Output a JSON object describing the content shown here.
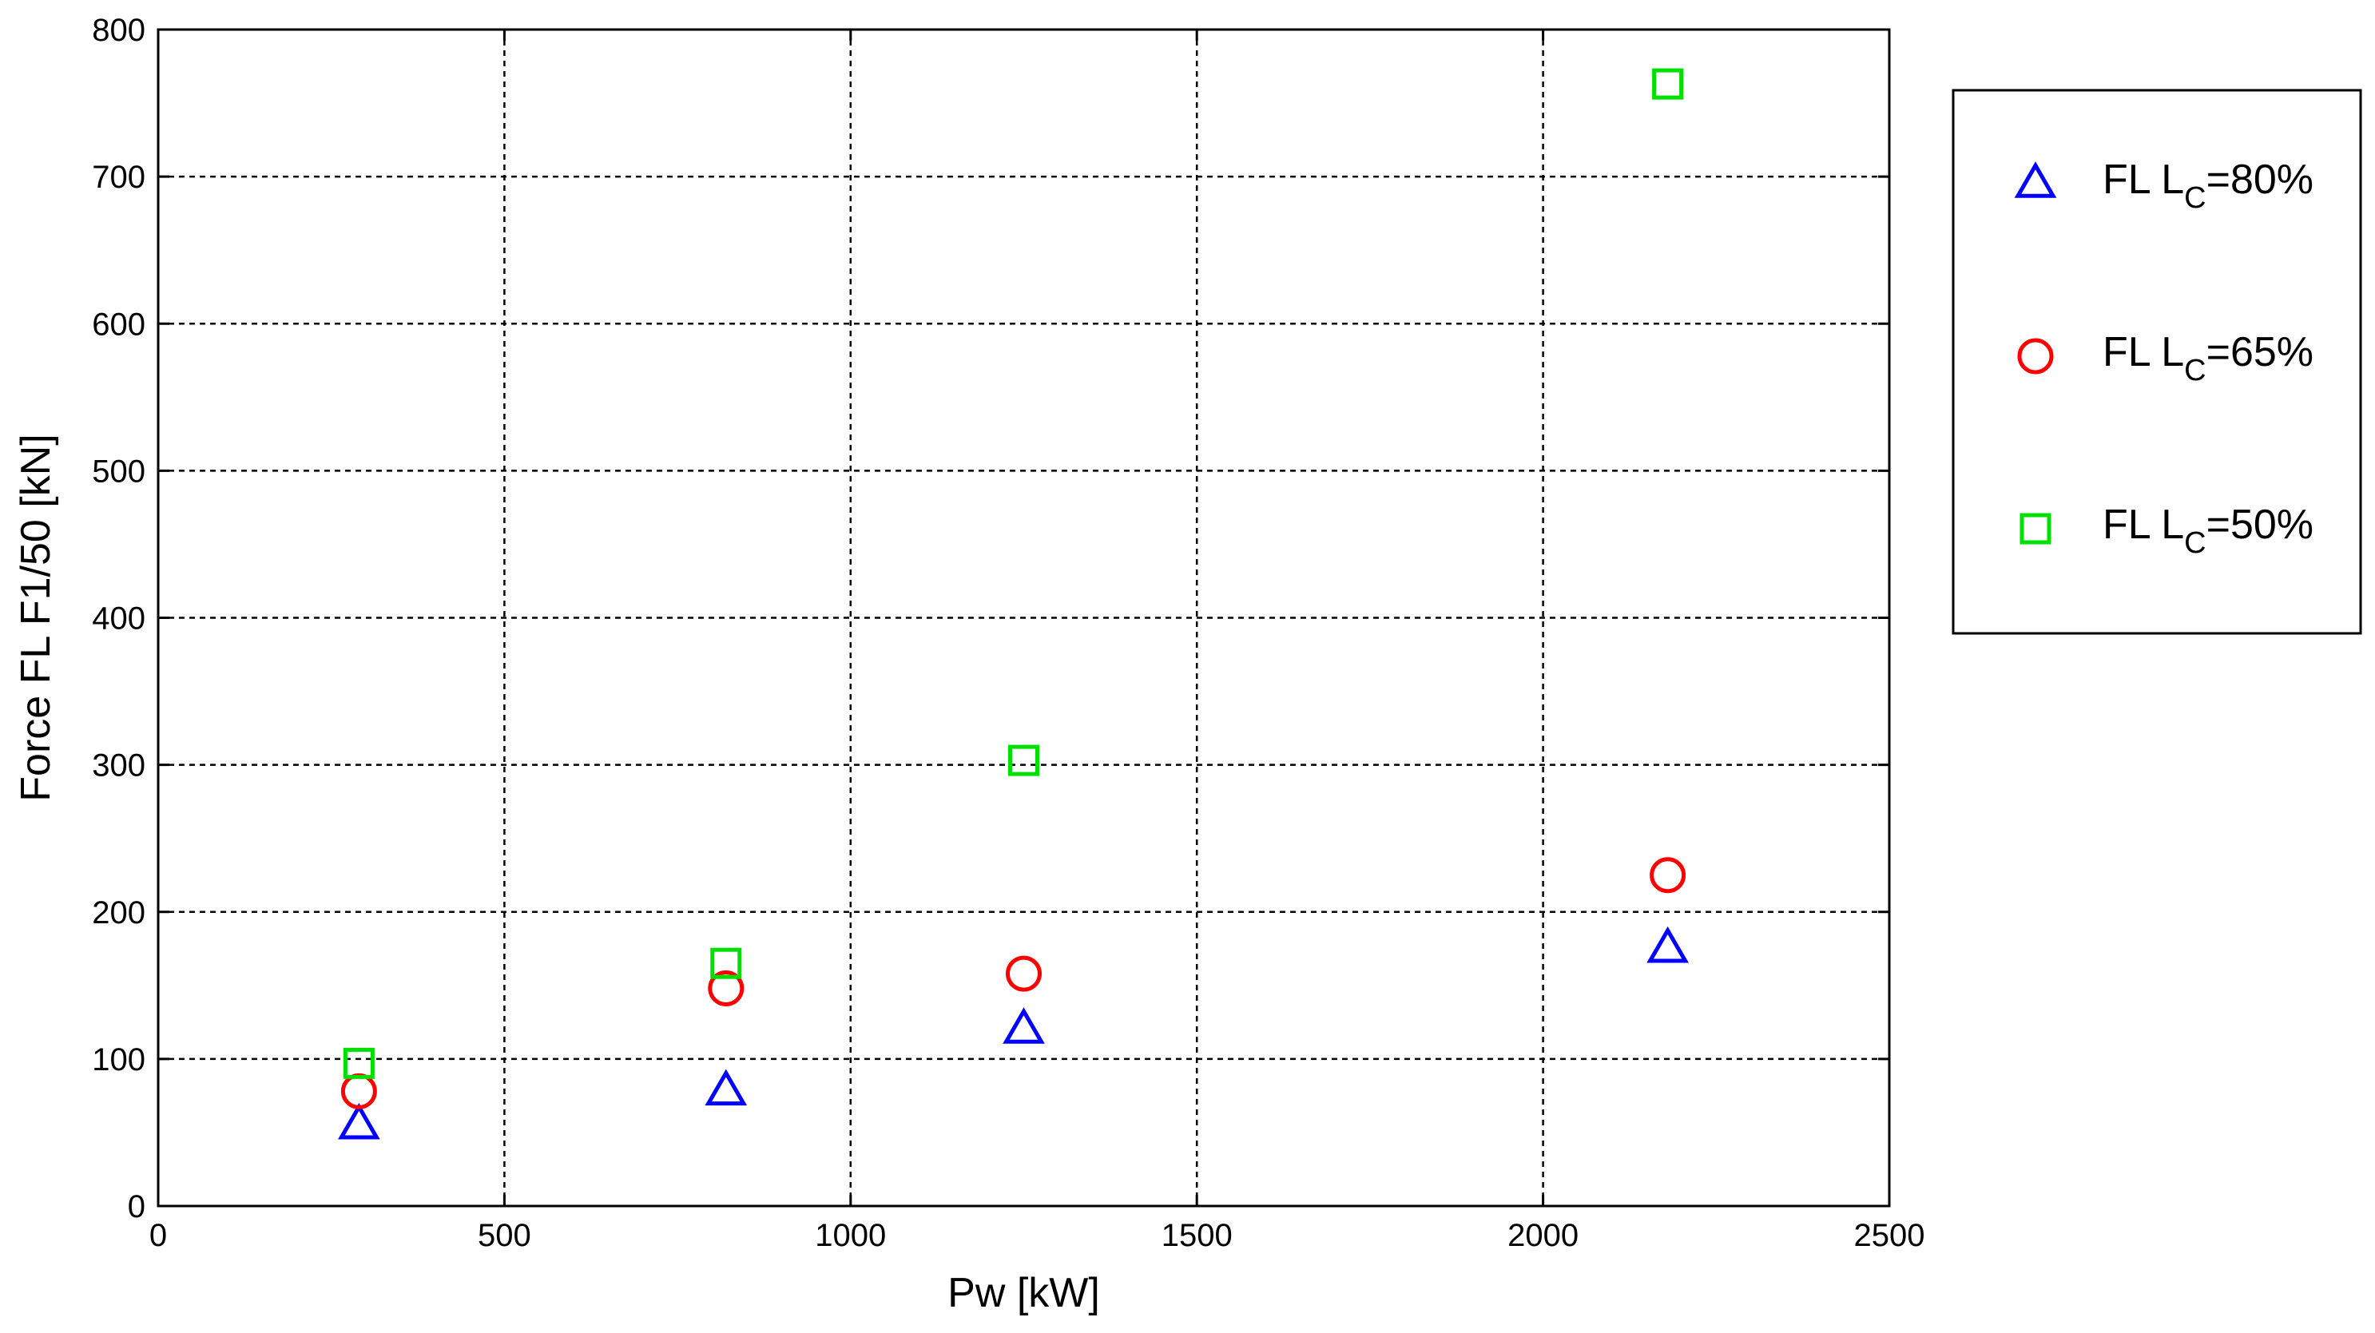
{
  "chart_data": {
    "type": "scatter",
    "title": "",
    "xlabel": "Pw [kW]",
    "ylabel": "Force FL F1/50 [kN]",
    "xlim": [
      0,
      2500
    ],
    "ylim": [
      0,
      800
    ],
    "xticks": [
      "0",
      "500",
      "1000",
      "1500",
      "2000",
      "2500"
    ],
    "yticks": [
      "0",
      "100",
      "200",
      "300",
      "400",
      "500",
      "600",
      "700",
      "800"
    ],
    "grid": true,
    "legend_position": "outside-right-top",
    "series": [
      {
        "name": "FL L",
        "name_sub": "C",
        "name_suffix": "=80%",
        "marker": "triangle",
        "color": "#0000ff",
        "x": [
          290,
          820,
          1250,
          2180
        ],
        "y": [
          55,
          78,
          120,
          175
        ]
      },
      {
        "name": "FL L",
        "name_sub": "C",
        "name_suffix": "=65%",
        "marker": "circle",
        "color": "#ff0000",
        "x": [
          290,
          820,
          1250,
          2180
        ],
        "y": [
          78,
          148,
          158,
          225
        ]
      },
      {
        "name": "FL L",
        "name_sub": "C",
        "name_suffix": "=50%",
        "marker": "square",
        "color": "#00e000",
        "x": [
          290,
          820,
          1250,
          2180
        ],
        "y": [
          97,
          165,
          303,
          763
        ]
      }
    ]
  }
}
